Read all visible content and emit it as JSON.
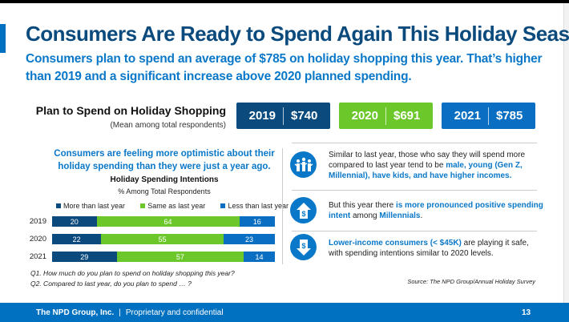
{
  "title": "Consumers Are Ready to Spend Again This Holiday Season",
  "subtitle": "Consumers plan to spend an average of $785 on holiday shopping this year. That’s higher than 2019 and a significant increase above 2020 planned spending.",
  "plan": {
    "label": "Plan to Spend on Holiday Shopping",
    "sub": "(Mean among total respondents)",
    "boxes": [
      {
        "year": "2019",
        "value": "$740",
        "color": "#0b4a7c"
      },
      {
        "year": "2020",
        "value": "$691",
        "color": "#6cc82a"
      },
      {
        "year": "2021",
        "value": "$785",
        "color": "#0a6fc2"
      }
    ]
  },
  "left": {
    "headline": "Consumers are feeling more optimistic about their holiday spending than they were just a year ago."
  },
  "chart_data": {
    "type": "bar",
    "stacked": true,
    "orientation": "horizontal",
    "title": "Holiday Spending Intentions",
    "subtitle": "% Among Total Respondents",
    "categories": [
      "2019",
      "2020",
      "2021"
    ],
    "series": [
      {
        "name": "More than last year",
        "color": "#0b4a7c",
        "values": [
          20,
          22,
          29
        ]
      },
      {
        "name": "Same as last year",
        "color": "#6cc82a",
        "values": [
          64,
          55,
          57
        ]
      },
      {
        "name": "Less than last year",
        "color": "#0a6fc2",
        "values": [
          16,
          23,
          14
        ]
      }
    ],
    "legend": "top"
  },
  "questions": [
    "Q1. How much do you plan to spend on holiday shopping this year?",
    "Q2. Compared to last year, do you plan to spend … ?"
  ],
  "insights": [
    {
      "icon": "family-icon",
      "parts": [
        {
          "t": "Similar to last year, those who say they will spend more compared to last year tend to be ",
          "h": false
        },
        {
          "t": "male, young (Gen Z, Millennial), have kids, and have higher incomes.",
          "h": true
        }
      ]
    },
    {
      "icon": "dollar-up-arrow-icon",
      "parts": [
        {
          "t": "But this year there ",
          "h": false
        },
        {
          "t": "is more pronounced positive spending intent",
          "h": true
        },
        {
          "t": " among ",
          "h": false
        },
        {
          "t": "Millennials",
          "h": true
        },
        {
          "t": ".",
          "h": false
        }
      ]
    },
    {
      "icon": "dollar-down-arrow-icon",
      "parts": [
        {
          "t": "Lower-income consumers (< $45K)",
          "h": true
        },
        {
          "t": " are playing it safe, with spending intentions similar to 2020 levels.",
          "h": false
        }
      ]
    }
  ],
  "source": "Source: The NPD Group/Annual Holiday Survey",
  "footer": {
    "company": "The NPD Group, Inc.",
    "sep": "|",
    "note": "Proprietary and confidential",
    "page": "13"
  }
}
